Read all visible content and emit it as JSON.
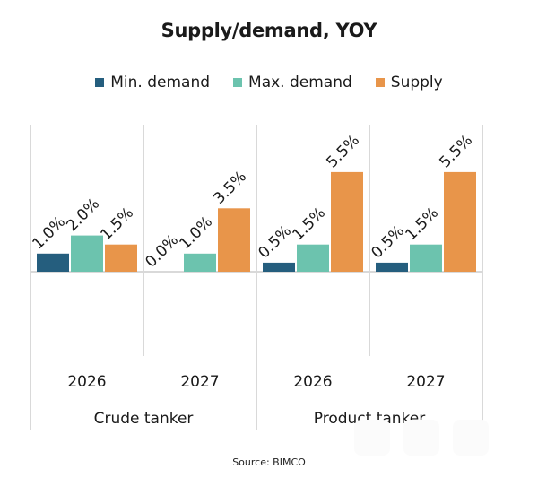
{
  "chart_data": {
    "type": "bar",
    "title": "Supply/demand, YOY",
    "xlabel": "",
    "ylabel": "",
    "ylim": [
      -5.0,
      6.0
    ],
    "grid": false,
    "legend_position": "top-center",
    "groups": [
      {
        "label": "Crude tanker",
        "categories": [
          "2026",
          "2027"
        ]
      },
      {
        "label": "Product tanker",
        "categories": [
          "2026",
          "2027"
        ]
      }
    ],
    "categories": [
      "Crude tanker 2026",
      "Crude tanker 2027",
      "Product tanker 2026",
      "Product tanker 2027"
    ],
    "series": [
      {
        "name": "Min. demand",
        "color": "#255E7E",
        "values": [
          1.0,
          0.0,
          0.5,
          0.5
        ],
        "labels": [
          "1.0%",
          "0.0%",
          "0.5%",
          "0.5%"
        ]
      },
      {
        "name": "Max. demand",
        "color": "#6CC3AE",
        "values": [
          2.0,
          1.0,
          1.5,
          1.5
        ],
        "labels": [
          "2.0%",
          "1.0%",
          "1.5%",
          "1.5%"
        ]
      },
      {
        "name": "Supply",
        "color": "#E8954A",
        "values": [
          1.5,
          3.5,
          5.5,
          5.5
        ],
        "labels": [
          "1.5%",
          "3.5%",
          "5.5%",
          "5.5%"
        ]
      }
    ],
    "source": "Source: BIMCO"
  }
}
